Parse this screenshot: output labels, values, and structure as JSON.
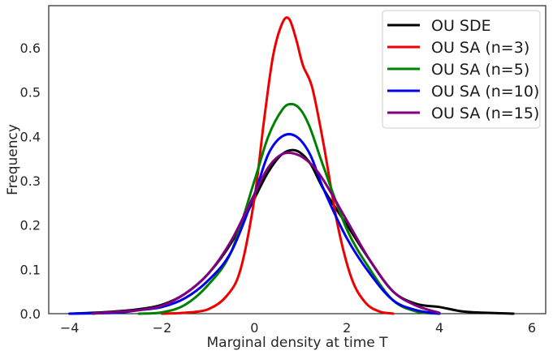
{
  "chart_data": {
    "type": "line",
    "title": "",
    "xlabel": "Marginal density at time T",
    "ylabel": "Frequency",
    "xlim": [
      -4.45,
      6.3
    ],
    "ylim": [
      0,
      0.695
    ],
    "xticks": [
      -4,
      -2,
      0,
      2,
      4,
      6
    ],
    "yticks": [
      0.0,
      0.1,
      0.2,
      0.3,
      0.4,
      0.5,
      0.6
    ],
    "xtick_labels": [
      "−4",
      "−2",
      "0",
      "2",
      "4",
      "6"
    ],
    "ytick_labels": [
      "0.0",
      "0.1",
      "0.2",
      "0.3",
      "0.4",
      "0.5",
      "0.6"
    ],
    "grid": false,
    "legend_position": "top-right",
    "series": [
      {
        "name": "OU SDE",
        "color": "#000000",
        "x": [
          -4.0,
          -3.5,
          -3.0,
          -2.5,
          -2.0,
          -1.5,
          -1.0,
          -0.5,
          0.0,
          0.3,
          0.6,
          0.9,
          1.2,
          1.5,
          2.0,
          2.5,
          3.0,
          3.5,
          4.0,
          4.5,
          5.0,
          5.6
        ],
        "y": [
          0.0,
          0.002,
          0.005,
          0.01,
          0.02,
          0.045,
          0.09,
          0.16,
          0.26,
          0.32,
          0.36,
          0.368,
          0.34,
          0.28,
          0.2,
          0.12,
          0.05,
          0.022,
          0.015,
          0.005,
          0.002,
          0.0
        ]
      },
      {
        "name": "OU SA (n=3)",
        "color": "#ee0000",
        "x": [
          -2.0,
          -1.5,
          -1.0,
          -0.6,
          -0.3,
          0.0,
          0.2,
          0.4,
          0.6,
          0.75,
          0.9,
          1.05,
          1.25,
          1.5,
          1.8,
          2.1,
          2.4,
          2.7,
          3.0
        ],
        "y": [
          0.0,
          0.002,
          0.01,
          0.04,
          0.1,
          0.26,
          0.43,
          0.58,
          0.655,
          0.665,
          0.62,
          0.56,
          0.51,
          0.38,
          0.2,
          0.08,
          0.025,
          0.005,
          0.0
        ]
      },
      {
        "name": "OU SA (n=5)",
        "color": "#008000",
        "x": [
          -2.5,
          -2.0,
          -1.5,
          -1.0,
          -0.5,
          0.0,
          0.3,
          0.6,
          0.8,
          1.0,
          1.2,
          1.5,
          2.0,
          2.5,
          3.0,
          3.5,
          4.0
        ],
        "y": [
          0.0,
          0.003,
          0.02,
          0.065,
          0.14,
          0.3,
          0.4,
          0.46,
          0.473,
          0.46,
          0.42,
          0.33,
          0.19,
          0.1,
          0.03,
          0.005,
          0.0
        ]
      },
      {
        "name": "OU SA (n=10)",
        "color": "#0000ee",
        "x": [
          -4.0,
          -3.0,
          -2.5,
          -2.0,
          -1.5,
          -1.0,
          -0.5,
          0.0,
          0.3,
          0.6,
          0.9,
          1.2,
          1.5,
          2.0,
          2.5,
          3.0,
          3.5,
          4.0
        ],
        "y": [
          0.0,
          0.002,
          0.008,
          0.015,
          0.035,
          0.075,
          0.14,
          0.27,
          0.36,
          0.4,
          0.4,
          0.36,
          0.28,
          0.17,
          0.09,
          0.03,
          0.008,
          0.0
        ]
      },
      {
        "name": "OU SA (n=15)",
        "color": "#800080",
        "x": [
          -3.5,
          -3.0,
          -2.5,
          -2.0,
          -1.5,
          -1.0,
          -0.5,
          0.0,
          0.3,
          0.6,
          0.9,
          1.2,
          1.5,
          2.0,
          2.5,
          3.0,
          3.5,
          4.0
        ],
        "y": [
          0.0,
          0.004,
          0.008,
          0.018,
          0.045,
          0.09,
          0.165,
          0.27,
          0.33,
          0.36,
          0.36,
          0.34,
          0.3,
          0.21,
          0.12,
          0.05,
          0.018,
          0.002
        ]
      }
    ]
  }
}
